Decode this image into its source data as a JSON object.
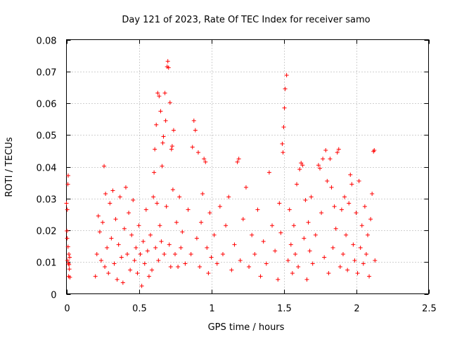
{
  "chart_data": {
    "type": "scatter",
    "title": "Day 121 of 2023, Rate Of TEC Index for receiver samo",
    "xlabel": "GPS time / hours",
    "ylabel": "ROTI / TECUs",
    "xlim": [
      0,
      2.5
    ],
    "ylim": [
      0,
      0.08
    ],
    "x_ticks": [
      "0",
      "0.5",
      "1",
      "1.5",
      "2",
      "2.5"
    ],
    "y_ticks": [
      "0",
      "0.01",
      "0.02",
      "0.03",
      "0.04",
      "0.05",
      "0.06",
      "0.07",
      "0.08"
    ],
    "grid": true,
    "marker": "+",
    "color": "#ff0000",
    "series": [
      {
        "name": "ROTI",
        "points": [
          [
            0.0,
            0.0285
          ],
          [
            0.003,
            0.0198
          ],
          [
            0.006,
            0.0265
          ],
          [
            0.008,
            0.0105
          ],
          [
            0.01,
            0.0345
          ],
          [
            0.012,
            0.0372
          ],
          [
            0.014,
            0.0095
          ],
          [
            0.015,
            0.0055
          ],
          [
            0.017,
            0.0125
          ],
          [
            0.02,
            0.0078
          ],
          [
            0.022,
            0.0115
          ],
          [
            0.024,
            0.0052
          ],
          [
            0.005,
            0.0175
          ],
          [
            0.011,
            0.0148
          ],
          [
            0.018,
            0.0092
          ],
          [
            0.2,
            0.0055
          ],
          [
            0.21,
            0.0125
          ],
          [
            0.22,
            0.0245
          ],
          [
            0.23,
            0.0195
          ],
          [
            0.24,
            0.0105
          ],
          [
            0.25,
            0.0225
          ],
          [
            0.26,
            0.0402
          ],
          [
            0.265,
            0.0085
          ],
          [
            0.27,
            0.0315
          ],
          [
            0.28,
            0.0145
          ],
          [
            0.29,
            0.0065
          ],
          [
            0.3,
            0.0285
          ],
          [
            0.31,
            0.0175
          ],
          [
            0.32,
            0.0325
          ],
          [
            0.33,
            0.0095
          ],
          [
            0.34,
            0.0235
          ],
          [
            0.35,
            0.0045
          ],
          [
            0.36,
            0.0155
          ],
          [
            0.37,
            0.0305
          ],
          [
            0.38,
            0.0115
          ],
          [
            0.39,
            0.0035
          ],
          [
            0.4,
            0.0205
          ],
          [
            0.41,
            0.0335
          ],
          [
            0.42,
            0.0125
          ],
          [
            0.43,
            0.0255
          ],
          [
            0.44,
            0.0075
          ],
          [
            0.45,
            0.0185
          ],
          [
            0.46,
            0.0295
          ],
          [
            0.47,
            0.0105
          ],
          [
            0.48,
            0.0145
          ],
          [
            0.49,
            0.0065
          ],
          [
            0.5,
            0.0215
          ],
          [
            0.51,
            0.0125
          ],
          [
            0.52,
            0.0025
          ],
          [
            0.53,
            0.0165
          ],
          [
            0.54,
            0.0095
          ],
          [
            0.55,
            0.0265
          ],
          [
            0.56,
            0.0135
          ],
          [
            0.57,
            0.0055
          ],
          [
            0.58,
            0.0185
          ],
          [
            0.59,
            0.0075
          ],
          [
            0.6,
            0.0305
          ],
          [
            0.605,
            0.0382
          ],
          [
            0.61,
            0.0455
          ],
          [
            0.615,
            0.0145
          ],
          [
            0.62,
            0.0532
          ],
          [
            0.625,
            0.0285
          ],
          [
            0.63,
            0.0632
          ],
          [
            0.635,
            0.0105
          ],
          [
            0.64,
            0.0622
          ],
          [
            0.645,
            0.0215
          ],
          [
            0.65,
            0.0575
          ],
          [
            0.655,
            0.0165
          ],
          [
            0.66,
            0.0402
          ],
          [
            0.665,
            0.0475
          ],
          [
            0.67,
            0.0495
          ],
          [
            0.675,
            0.0125
          ],
          [
            0.68,
            0.0632
          ],
          [
            0.685,
            0.0545
          ],
          [
            0.69,
            0.0275
          ],
          [
            0.695,
            0.0715
          ],
          [
            0.7,
            0.0732
          ],
          [
            0.705,
            0.0712
          ],
          [
            0.71,
            0.0155
          ],
          [
            0.715,
            0.0602
          ],
          [
            0.72,
            0.0085
          ],
          [
            0.725,
            0.0455
          ],
          [
            0.73,
            0.0465
          ],
          [
            0.735,
            0.0328
          ],
          [
            0.74,
            0.0515
          ],
          [
            0.75,
            0.0125
          ],
          [
            0.76,
            0.0225
          ],
          [
            0.77,
            0.0085
          ],
          [
            0.78,
            0.0305
          ],
          [
            0.79,
            0.0145
          ],
          [
            0.8,
            0.0195
          ],
          [
            0.82,
            0.0095
          ],
          [
            0.84,
            0.0265
          ],
          [
            0.86,
            0.0125
          ],
          [
            0.87,
            0.0462
          ],
          [
            0.88,
            0.0545
          ],
          [
            0.89,
            0.0515
          ],
          [
            0.9,
            0.0175
          ],
          [
            0.91,
            0.0445
          ],
          [
            0.92,
            0.0085
          ],
          [
            0.93,
            0.0225
          ],
          [
            0.94,
            0.0315
          ],
          [
            0.95,
            0.0425
          ],
          [
            0.96,
            0.0415
          ],
          [
            0.97,
            0.0145
          ],
          [
            0.98,
            0.0065
          ],
          [
            0.99,
            0.0255
          ],
          [
            1.0,
            0.0115
          ],
          [
            1.02,
            0.0185
          ],
          [
            1.04,
            0.0095
          ],
          [
            1.06,
            0.0275
          ],
          [
            1.08,
            0.0125
          ],
          [
            1.1,
            0.0215
          ],
          [
            1.12,
            0.0305
          ],
          [
            1.14,
            0.0075
          ],
          [
            1.16,
            0.0155
          ],
          [
            1.18,
            0.0415
          ],
          [
            1.19,
            0.0425
          ],
          [
            1.2,
            0.0105
          ],
          [
            1.22,
            0.0235
          ],
          [
            1.24,
            0.0335
          ],
          [
            1.26,
            0.0085
          ],
          [
            1.28,
            0.0185
          ],
          [
            1.3,
            0.0125
          ],
          [
            1.32,
            0.0265
          ],
          [
            1.34,
            0.0055
          ],
          [
            1.36,
            0.0165
          ],
          [
            1.38,
            0.0095
          ],
          [
            1.4,
            0.0382
          ],
          [
            1.42,
            0.0215
          ],
          [
            1.44,
            0.0135
          ],
          [
            1.46,
            0.0045
          ],
          [
            1.47,
            0.0285
          ],
          [
            1.48,
            0.0192
          ],
          [
            1.49,
            0.0472
          ],
          [
            1.495,
            0.0445
          ],
          [
            1.5,
            0.0525
          ],
          [
            1.505,
            0.0585
          ],
          [
            1.51,
            0.0645
          ],
          [
            1.52,
            0.0688
          ],
          [
            1.53,
            0.0105
          ],
          [
            1.54,
            0.0265
          ],
          [
            1.55,
            0.0155
          ],
          [
            1.56,
            0.0065
          ],
          [
            1.57,
            0.0215
          ],
          [
            1.58,
            0.0125
          ],
          [
            1.59,
            0.0345
          ],
          [
            1.6,
            0.0085
          ],
          [
            1.61,
            0.0392
          ],
          [
            1.62,
            0.0412
          ],
          [
            1.63,
            0.0405
          ],
          [
            1.64,
            0.0175
          ],
          [
            1.65,
            0.0295
          ],
          [
            1.66,
            0.0045
          ],
          [
            1.67,
            0.0225
          ],
          [
            1.68,
            0.0135
          ],
          [
            1.69,
            0.0305
          ],
          [
            1.7,
            0.0095
          ],
          [
            1.72,
            0.0185
          ],
          [
            1.74,
            0.0405
          ],
          [
            1.75,
            0.0395
          ],
          [
            1.76,
            0.0255
          ],
          [
            1.77,
            0.0425
          ],
          [
            1.78,
            0.0115
          ],
          [
            1.79,
            0.0452
          ],
          [
            1.8,
            0.0355
          ],
          [
            1.81,
            0.0065
          ],
          [
            1.82,
            0.0425
          ],
          [
            1.83,
            0.0335
          ],
          [
            1.84,
            0.0145
          ],
          [
            1.85,
            0.0275
          ],
          [
            1.86,
            0.0205
          ],
          [
            1.87,
            0.0445
          ],
          [
            1.88,
            0.0455
          ],
          [
            1.89,
            0.0085
          ],
          [
            1.9,
            0.0265
          ],
          [
            1.91,
            0.0125
          ],
          [
            1.92,
            0.0305
          ],
          [
            1.93,
            0.0185
          ],
          [
            1.94,
            0.0075
          ],
          [
            1.95,
            0.0285
          ],
          [
            1.96,
            0.0375
          ],
          [
            1.97,
            0.0345
          ],
          [
            1.98,
            0.0155
          ],
          [
            1.99,
            0.0105
          ],
          [
            2.0,
            0.0255
          ],
          [
            2.01,
            0.0065
          ],
          [
            2.02,
            0.0355
          ],
          [
            2.03,
            0.0145
          ],
          [
            2.04,
            0.0215
          ],
          [
            2.05,
            0.0095
          ],
          [
            2.06,
            0.0275
          ],
          [
            2.07,
            0.0125
          ],
          [
            2.08,
            0.0185
          ],
          [
            2.09,
            0.0055
          ],
          [
            2.1,
            0.0235
          ],
          [
            2.11,
            0.0315
          ],
          [
            2.12,
            0.0448
          ],
          [
            2.125,
            0.0452
          ],
          [
            2.13,
            0.0105
          ]
        ]
      }
    ]
  }
}
